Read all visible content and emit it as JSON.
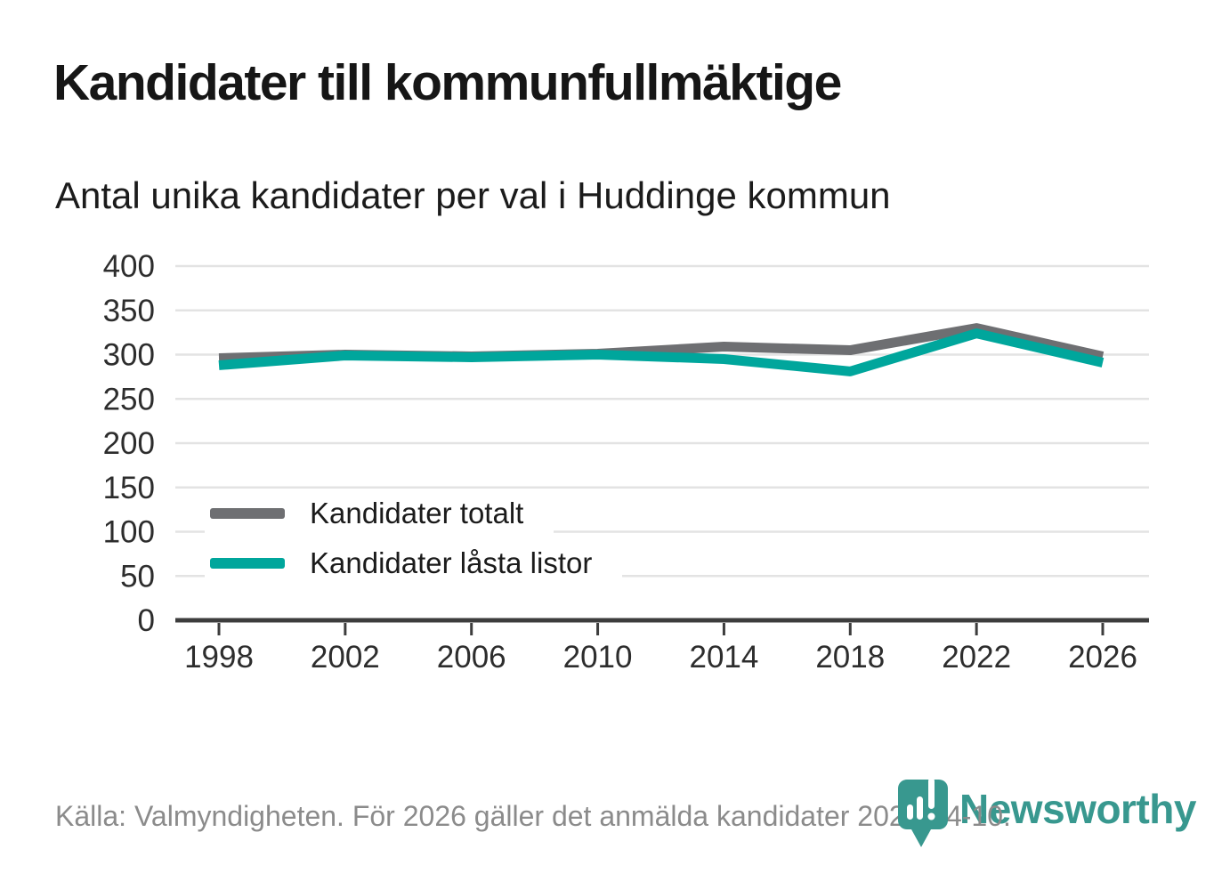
{
  "title": "Kandidater till kommunfullmäktige",
  "subtitle": "Antal unika kandidater per val i Huddinge kommun",
  "footer": {
    "source_text": "Källa: Valmyndigheten. För 2026 gäller det anmälda kandidater 2026-04-10."
  },
  "logo": {
    "brand": "Newsworthy",
    "mark": "map-pin-with-bar-chart"
  },
  "colors": {
    "total": "#6e6f72",
    "locked": "#00a69c",
    "brand_teal": "#38988f",
    "grid": "#e3e3e3",
    "axis": "#3d3d3d",
    "tick_text": "#2d2d2d",
    "title_text": "#161616",
    "muted_text": "#8b8b8b",
    "background": "#ffffff"
  },
  "chart_data": {
    "type": "line",
    "title": "Kandidater till kommunfullmäktige",
    "subtitle": "Antal unika kandidater per val i Huddinge kommun",
    "xlabel": "",
    "ylabel": "",
    "categories": [
      "1998",
      "2002",
      "2006",
      "2010",
      "2014",
      "2018",
      "2022",
      "2026"
    ],
    "series": [
      {
        "name": "Kandidater totalt",
        "color_key": "total",
        "values": [
          296,
          300,
          298,
          301,
          309,
          305,
          330,
          298
        ]
      },
      {
        "name": "Kandidater låsta listor",
        "color_key": "locked",
        "values": [
          288,
          299,
          297,
          300,
          295,
          281,
          324,
          291
        ]
      }
    ],
    "ylim": [
      0,
      400
    ],
    "yticks": [
      0,
      50,
      100,
      150,
      200,
      250,
      300,
      350,
      400
    ],
    "grid": true,
    "legend_position": "inside-left"
  }
}
